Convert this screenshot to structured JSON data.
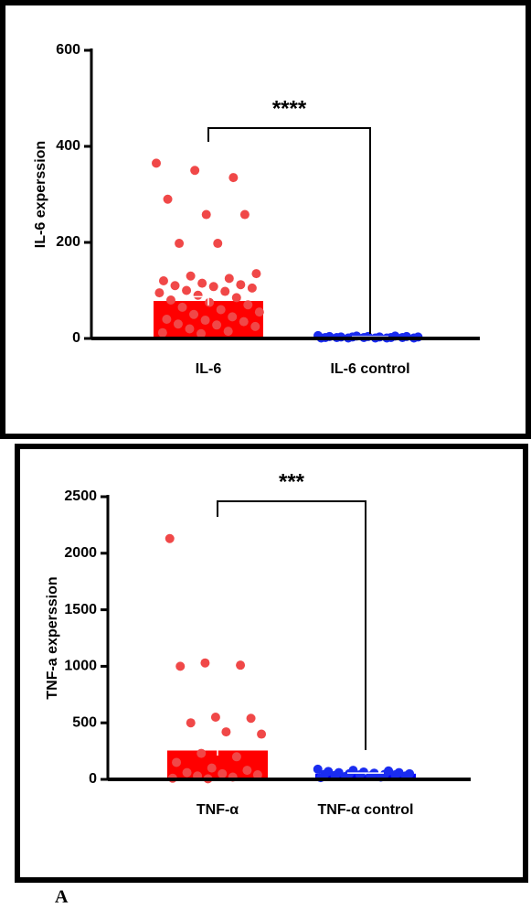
{
  "chart_data": [
    {
      "type": "bar",
      "ylabel": "IL-6 experssion",
      "categories": [
        "IL-6",
        "IL-6 control"
      ],
      "values": [
        78,
        3
      ],
      "errors": [
        9,
        0.5
      ],
      "colors": [
        "#ff0000",
        "#0000ff"
      ],
      "point_colors": [
        "#f04848",
        "#1a2cf0"
      ],
      "points": [
        [
          365,
          350,
          335,
          290,
          258,
          258,
          198,
          198,
          135,
          130,
          125,
          120,
          115,
          112,
          110,
          108,
          105,
          100,
          98,
          95,
          90,
          85,
          80,
          75,
          70,
          65,
          60,
          55,
          50,
          45,
          40,
          38,
          35,
          30,
          28,
          25,
          20,
          15,
          12,
          10
        ],
        [
          6,
          5,
          5,
          4,
          4,
          4,
          3,
          3,
          3,
          3,
          2,
          2,
          2,
          2,
          2,
          1,
          1,
          1,
          1,
          1
        ]
      ],
      "ylim": [
        0,
        600
      ],
      "yticks": [
        0,
        200,
        400,
        600
      ],
      "annotation": "****"
    },
    {
      "type": "bar",
      "ylabel": "TNF-a experssion",
      "categories": [
        "TNF-α",
        "TNF-α control"
      ],
      "values": [
        255,
        50
      ],
      "errors": [
        45,
        6
      ],
      "colors": [
        "#ff0000",
        "#0000ff"
      ],
      "point_colors": [
        "#f04848",
        "#1a2cf0"
      ],
      "points": [
        [
          2130,
          1030,
          1010,
          1000,
          550,
          540,
          500,
          420,
          400,
          230,
          200,
          150,
          100,
          80,
          60,
          50,
          40,
          30,
          20,
          10,
          5
        ],
        [
          90,
          80,
          75,
          70,
          65,
          60,
          60,
          55,
          50,
          50,
          45,
          45,
          40,
          40,
          35,
          30,
          30,
          25,
          20,
          15
        ]
      ],
      "ylim": [
        0,
        2500
      ],
      "yticks": [
        0,
        500,
        1000,
        1500,
        2000,
        2500
      ],
      "annotation": "***"
    }
  ],
  "figure_label": "A"
}
